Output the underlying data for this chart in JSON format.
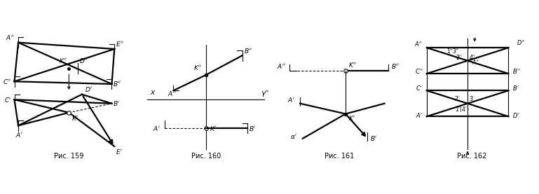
{
  "fig_width": 7.69,
  "fig_height": 2.77,
  "bg_color": "#ffffff",
  "captions": [
    "Рис. 159",
    "Рис. 160",
    "Рис. 161",
    "Рис. 162"
  ],
  "lw_thick": 1.6,
  "lw_thin": 0.8,
  "lw_dash": 0.8,
  "fs": 6.5
}
